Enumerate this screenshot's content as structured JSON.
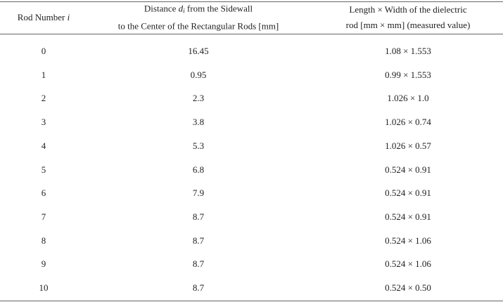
{
  "table": {
    "header": [
      [
        "Rod Number ",
        "i"
      ],
      [
        "Distance ",
        "d",
        "i",
        " from the Sidewall",
        "to the Center of the Rectangular Rods [mm]"
      ],
      [
        "Length × Width of the dielectric",
        "rod [mm × mm] (measured value)"
      ]
    ],
    "rows": [
      [
        0,
        16.45,
        "1.08 × 1.553"
      ],
      [
        1,
        0.95,
        "0.99 × 1.553"
      ],
      [
        2,
        2.3,
        "1.026 × 1.0"
      ],
      [
        3,
        3.8,
        "1.026 × 0.74"
      ],
      [
        4,
        5.3,
        "1.026 × 0.57"
      ],
      [
        5,
        6.8,
        "0.524 × 0.91"
      ],
      [
        6,
        7.9,
        "0.524 × 0.91"
      ],
      [
        7,
        8.7,
        "0.524 × 0.91"
      ],
      [
        8,
        8.7,
        "0.524 × 1.06"
      ],
      [
        9,
        8.7,
        "0.524 × 1.06"
      ],
      [
        10,
        8.7,
        "0.524 × 0.50"
      ]
    ]
  }
}
